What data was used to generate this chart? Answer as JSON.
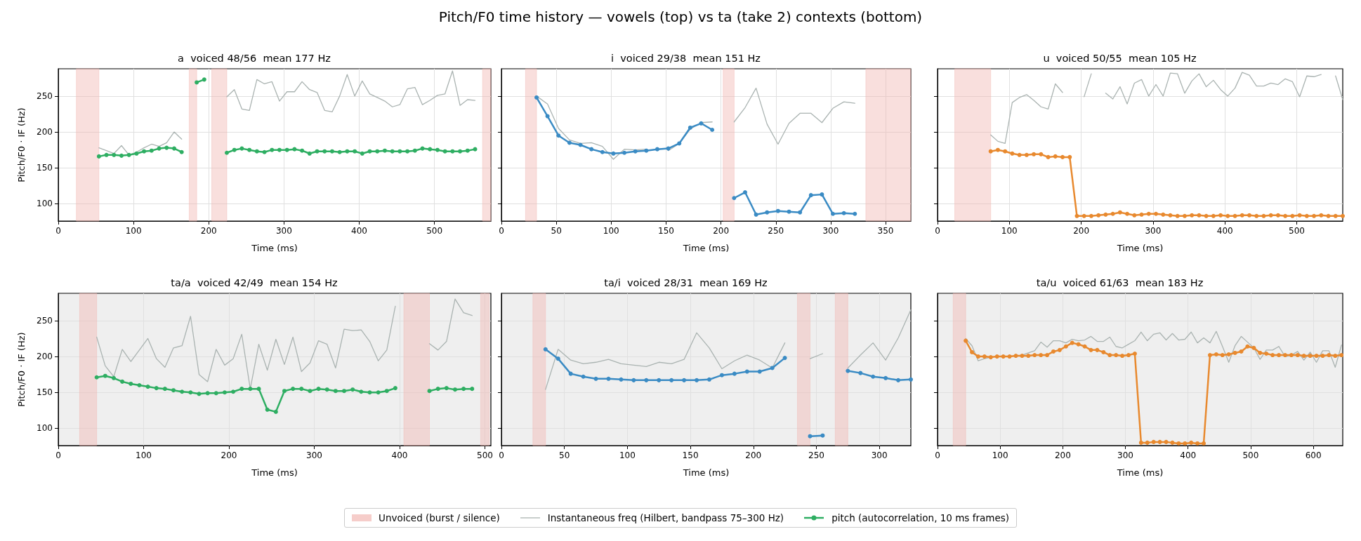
{
  "chart_data": [
    {
      "type": "line",
      "title": "a  voiced 48/56  mean 177 Hz",
      "xlabel": "Time (ms)",
      "ylabel": "Pitch/F0 · IF (Hz)",
      "annotations": [
        "Pitch/F0 time history — vowels (top) vs ta (take 2) contexts (bottom)"
      ],
      "legend": "bottom",
      "grid": true,
      "xlim": [
        0,
        575
      ],
      "xticks": [
        0,
        100,
        200,
        300,
        400,
        500
      ],
      "ylim": [
        76,
        288
      ],
      "yticks": [
        100,
        150,
        200,
        250
      ],
      "bands": [
        {
          "axis": "x",
          "from": 24,
          "to": 54,
          "label": "Unvoiced (burst / silence)",
          "color": "#f2b8b4"
        },
        {
          "axis": "x",
          "from": 174,
          "to": 184,
          "color": "#f2b8b4"
        },
        {
          "axis": "x",
          "from": 204,
          "to": 224,
          "color": "#f2b8b4"
        },
        {
          "axis": "x",
          "from": 564,
          "to": 575,
          "color": "#f2b8b4"
        }
      ],
      "series": [
        {
          "name": "Instantaneous freq (Hilbert, bandpass 75–300 Hz)",
          "color": "#aab3b1",
          "marker": "none",
          "x": [
            54,
            64,
            74,
            84,
            94,
            104,
            114,
            124,
            134,
            144,
            154,
            164,
            194,
            224,
            234,
            244,
            254,
            264,
            274,
            284,
            294,
            304,
            314,
            324,
            334,
            344,
            354,
            364,
            374,
            384,
            394,
            404,
            414,
            424,
            434,
            444,
            454,
            464,
            474,
            484,
            494,
            504,
            514,
            524,
            534,
            544,
            554
          ],
          "values": [
            178,
            174,
            170,
            181,
            168,
            172,
            178,
            183,
            180,
            185,
            200,
            190,
            null,
            249,
            259,
            232,
            230,
            273,
            267,
            270,
            243,
            256,
            256,
            270,
            259,
            255,
            230,
            228,
            250,
            280,
            250,
            271,
            253,
            248,
            243,
            235,
            238,
            260,
            262,
            238,
            244,
            251,
            253,
            285,
            237,
            245,
            244
          ]
        },
        {
          "name": "pitch (autocorrelation, 10 ms frames)",
          "color": "#2eae62",
          "marker": "circle",
          "x": [
            54,
            64,
            74,
            84,
            94,
            104,
            114,
            124,
            134,
            144,
            154,
            164,
            174,
            184,
            194,
            204,
            224,
            234,
            244,
            254,
            264,
            274,
            284,
            294,
            304,
            314,
            324,
            334,
            344,
            354,
            364,
            374,
            384,
            394,
            404,
            414,
            424,
            434,
            444,
            454,
            464,
            474,
            484,
            494,
            504,
            514,
            524,
            534,
            544,
            554
          ],
          "values": [
            166,
            168,
            168,
            167,
            168,
            170,
            173,
            174,
            177,
            178,
            177,
            172,
            null,
            269,
            273,
            null,
            171,
            175,
            177,
            175,
            173,
            172,
            175,
            175,
            175,
            176,
            174,
            170,
            173,
            173,
            173,
            172,
            173,
            173,
            170,
            173,
            173,
            174,
            173,
            173,
            173,
            174,
            177,
            176,
            175,
            173,
            173,
            173,
            174,
            176
          ]
        }
      ]
    },
    {
      "type": "line",
      "title": "i  voiced 29/38  mean 151 Hz",
      "xlabel": "Time (ms)",
      "grid": true,
      "tick_labels": "x",
      "xlim": [
        0,
        373
      ],
      "xticks": [
        0,
        50,
        100,
        150,
        200,
        250,
        300,
        350
      ],
      "ylim": [
        76,
        288
      ],
      "yticks": [
        100,
        150,
        200,
        250
      ],
      "bands": [
        {
          "axis": "x",
          "from": 22,
          "to": 32,
          "color": "#f2b8b4"
        },
        {
          "axis": "x",
          "from": 202,
          "to": 212,
          "color": "#f2b8b4"
        },
        {
          "axis": "x",
          "from": 332,
          "to": 373,
          "color": "#f2b8b4"
        }
      ],
      "series": [
        {
          "color": "#aab3b1",
          "marker": "none",
          "x": [
            32,
            42,
            52,
            62,
            72,
            82,
            92,
            102,
            112,
            122,
            132,
            142,
            152,
            162,
            172,
            182,
            192,
            202,
            212,
            222,
            232,
            242,
            252,
            262,
            272,
            282,
            292,
            302,
            312,
            322
          ],
          "values": [
            250,
            239,
            205,
            189,
            184,
            185,
            180,
            162,
            176,
            175,
            176,
            null,
            174,
            184,
            204,
            213,
            214,
            null,
            214,
            234,
            261,
            211,
            183,
            212,
            226,
            226,
            213,
            233,
            242,
            240
          ]
        },
        {
          "color": "#3a8bc4",
          "marker": "circle",
          "x": [
            32,
            42,
            52,
            62,
            72,
            82,
            92,
            102,
            112,
            122,
            132,
            142,
            152,
            162,
            172,
            182,
            192,
            202,
            212,
            222,
            232,
            242,
            252,
            262,
            272,
            282,
            292,
            302,
            312,
            322
          ],
          "values": [
            248,
            222,
            195,
            185,
            182,
            176,
            172,
            170,
            171,
            173,
            174,
            176,
            177,
            184,
            206,
            212,
            203,
            null,
            108,
            116,
            85,
            88,
            90,
            89,
            88,
            112,
            113,
            86,
            87,
            86
          ]
        }
      ]
    },
    {
      "type": "line",
      "title": "u  voiced 50/55  mean 105 Hz",
      "xlabel": "Time (ms)",
      "grid": true,
      "tick_labels": "x",
      "xlim": [
        0,
        564
      ],
      "xticks": [
        0,
        100,
        200,
        300,
        400,
        500
      ],
      "ylim": [
        76,
        288
      ],
      "yticks": [
        100,
        150,
        200,
        250
      ],
      "bands": [
        {
          "axis": "x",
          "from": 24,
          "to": 74,
          "color": "#f2b8b4"
        }
      ],
      "series": [
        {
          "color": "#aab3b1",
          "marker": "none",
          "x": [
            74,
            84,
            94,
            104,
            114,
            124,
            134,
            144,
            154,
            164,
            174,
            184,
            194,
            204,
            214,
            224,
            234,
            244,
            254,
            264,
            274,
            284,
            294,
            304,
            314,
            324,
            334,
            344,
            354,
            364,
            374,
            384,
            394,
            404,
            414,
            424,
            434,
            444,
            454,
            464,
            474,
            484,
            494,
            504,
            514,
            524,
            534,
            544,
            554,
            564
          ],
          "values": [
            196,
            187,
            184,
            241,
            248,
            252,
            244,
            235,
            232,
            267,
            255,
            null,
            null,
            249,
            281,
            null,
            254,
            246,
            263,
            239,
            268,
            273,
            250,
            266,
            250,
            282,
            281,
            254,
            271,
            281,
            263,
            272,
            259,
            250,
            261,
            283,
            279,
            264,
            264,
            268,
            266,
            274,
            270,
            249,
            278,
            277,
            280,
            null,
            278,
            245
          ]
        },
        {
          "color": "#e8892e",
          "marker": "circle",
          "x": [
            74,
            84,
            94,
            104,
            114,
            124,
            134,
            144,
            154,
            164,
            174,
            184,
            194,
            204,
            214,
            224,
            234,
            244,
            254,
            264,
            274,
            284,
            294,
            304,
            314,
            324,
            334,
            344,
            354,
            364,
            374,
            384,
            394,
            404,
            414,
            424,
            434,
            444,
            454,
            464,
            474,
            484,
            494,
            504,
            514,
            524,
            534,
            544,
            554,
            564
          ],
          "values": [
            173,
            175,
            173,
            170,
            168,
            168,
            169,
            169,
            165,
            166,
            165,
            165,
            83,
            83,
            83,
            84,
            85,
            86,
            88,
            86,
            84,
            85,
            86,
            86,
            85,
            84,
            83,
            83,
            84,
            84,
            83,
            83,
            84,
            83,
            83,
            84,
            84,
            83,
            83,
            84,
            84,
            83,
            83,
            84,
            83,
            83,
            84,
            83,
            83,
            83
          ]
        }
      ]
    },
    {
      "type": "line",
      "title": "ta/a  voiced 42/49  mean 154 Hz",
      "xlabel": "Time (ms)",
      "ylabel": "Pitch/F0 · IF (Hz)",
      "grid": true,
      "xlim": [
        0,
        507
      ],
      "xticks": [
        0,
        100,
        200,
        300,
        400,
        500
      ],
      "ylim": [
        76,
        288
      ],
      "yticks": [
        100,
        150,
        200,
        250
      ],
      "bands": [
        {
          "axis": "x",
          "from": 25,
          "to": 45,
          "color": "#f2b8b4"
        },
        {
          "axis": "x",
          "from": 405,
          "to": 435,
          "color": "#f2b8b4"
        },
        {
          "axis": "x",
          "from": 495,
          "to": 505,
          "color": "#f2b8b4"
        }
      ],
      "series": [
        {
          "color": "#aab3b1",
          "marker": "none",
          "x": [
            45,
            55,
            65,
            75,
            85,
            95,
            105,
            115,
            125,
            135,
            145,
            155,
            165,
            175,
            185,
            195,
            205,
            215,
            225,
            235,
            245,
            255,
            265,
            275,
            285,
            295,
            305,
            315,
            325,
            335,
            345,
            355,
            365,
            375,
            385,
            395,
            415,
            435,
            445,
            455,
            465,
            475,
            485
          ],
          "values": [
            227,
            187,
            172,
            210,
            193,
            209,
            225,
            197,
            185,
            212,
            215,
            256,
            175,
            165,
            210,
            188,
            197,
            231,
            155,
            217,
            181,
            224,
            189,
            227,
            179,
            191,
            222,
            217,
            184,
            238,
            236,
            237,
            221,
            194,
            209,
            270,
            null,
            218,
            209,
            221,
            280,
            261,
            257
          ]
        },
        {
          "color": "#2eae62",
          "marker": "circle",
          "x": [
            45,
            55,
            65,
            75,
            85,
            95,
            105,
            115,
            125,
            135,
            145,
            155,
            165,
            175,
            185,
            195,
            205,
            215,
            225,
            235,
            245,
            255,
            265,
            275,
            285,
            295,
            305,
            315,
            325,
            335,
            345,
            355,
            365,
            375,
            385,
            395,
            415,
            435,
            445,
            455,
            465,
            475,
            485
          ],
          "values": [
            171,
            173,
            170,
            165,
            162,
            160,
            158,
            156,
            155,
            153,
            151,
            150,
            148,
            149,
            149,
            150,
            151,
            155,
            155,
            155,
            126,
            123,
            152,
            155,
            155,
            152,
            155,
            154,
            152,
            152,
            154,
            151,
            150,
            150,
            152,
            156,
            null,
            152,
            155,
            156,
            154,
            155,
            155
          ]
        }
      ]
    },
    {
      "type": "line",
      "title": "ta/i  voiced 28/31  mean 169 Hz",
      "xlabel": "Time (ms)",
      "grid": true,
      "tick_labels": "x",
      "xlim": [
        0,
        325
      ],
      "xticks": [
        0,
        50,
        100,
        150,
        200,
        250,
        300
      ],
      "ylim": [
        76,
        288
      ],
      "yticks": [
        100,
        150,
        200,
        250
      ],
      "bands": [
        {
          "axis": "x",
          "from": 25,
          "to": 35,
          "color": "#f2b8b4"
        },
        {
          "axis": "x",
          "from": 235,
          "to": 245,
          "color": "#f2b8b4"
        },
        {
          "axis": "x",
          "from": 265,
          "to": 275,
          "color": "#f2b8b4"
        }
      ],
      "series": [
        {
          "color": "#aab3b1",
          "marker": "none",
          "x": [
            35,
            45,
            55,
            65,
            75,
            85,
            95,
            105,
            115,
            125,
            135,
            145,
            155,
            165,
            175,
            185,
            195,
            205,
            215,
            225,
            235,
            245,
            255,
            265,
            275,
            285,
            295,
            305,
            315,
            325
          ],
          "values": [
            154,
            210,
            195,
            190,
            192,
            196,
            190,
            188,
            186,
            192,
            190,
            196,
            233,
            212,
            183,
            194,
            202,
            195,
            184,
            219,
            null,
            197,
            204,
            null,
            184,
            202,
            219,
            195,
            226,
            265
          ]
        },
        {
          "color": "#3a8bc4",
          "marker": "circle",
          "x": [
            35,
            45,
            55,
            65,
            75,
            85,
            95,
            105,
            115,
            125,
            135,
            145,
            155,
            165,
            175,
            185,
            195,
            205,
            215,
            225,
            235,
            245,
            255,
            265,
            275,
            285,
            295,
            305,
            315,
            325
          ],
          "values": [
            210,
            197,
            176,
            172,
            169,
            169,
            168,
            167,
            167,
            167,
            167,
            167,
            167,
            168,
            174,
            176,
            179,
            179,
            184,
            198,
            null,
            89,
            90,
            null,
            180,
            177,
            172,
            170,
            167,
            168
          ]
        }
      ]
    },
    {
      "type": "line",
      "title": "ta/u  voiced 61/63  mean 183 Hz",
      "xlabel": "Time (ms)",
      "grid": true,
      "tick_labels": "x",
      "xlim": [
        0,
        647
      ],
      "xticks": [
        0,
        100,
        200,
        300,
        400,
        500,
        600
      ],
      "ylim": [
        76,
        288
      ],
      "yticks": [
        100,
        150,
        200,
        250
      ],
      "bands": [
        {
          "axis": "x",
          "from": 25,
          "to": 45,
          "color": "#f2b8b4"
        }
      ],
      "series": [
        {
          "color": "#aab3b1",
          "marker": "none",
          "x": [
            45,
            55,
            65,
            75,
            85,
            95,
            105,
            115,
            125,
            135,
            145,
            155,
            165,
            175,
            185,
            195,
            205,
            215,
            225,
            235,
            245,
            255,
            265,
            275,
            285,
            295,
            305,
            315,
            325,
            335,
            345,
            355,
            365,
            375,
            385,
            395,
            405,
            415,
            425,
            435,
            445,
            455,
            465,
            475,
            485,
            495,
            505,
            515,
            525,
            535,
            545,
            555,
            565,
            575,
            585,
            595,
            605,
            615,
            625,
            635,
            645
          ],
          "values": [
            225,
            215,
            194,
            197,
            199,
            null,
            null,
            null,
            null,
            202,
            205,
            208,
            220,
            213,
            222,
            222,
            219,
            224,
            222,
            223,
            228,
            221,
            221,
            227,
            214,
            212,
            217,
            222,
            234,
            222,
            231,
            233,
            223,
            232,
            223,
            224,
            234,
            219,
            226,
            219,
            235,
            214,
            192,
            215,
            228,
            220,
            212,
            196,
            209,
            209,
            214,
            200,
            202,
            207,
            195,
            206,
            192,
            208,
            208,
            185,
            216
          ]
        },
        {
          "color": "#e8892e",
          "marker": "circle",
          "x": [
            45,
            55,
            65,
            75,
            85,
            95,
            105,
            115,
            125,
            135,
            145,
            155,
            165,
            175,
            185,
            195,
            205,
            215,
            225,
            235,
            245,
            255,
            265,
            275,
            285,
            295,
            305,
            315,
            325,
            335,
            345,
            355,
            365,
            375,
            385,
            395,
            405,
            415,
            425,
            435,
            445,
            455,
            465,
            475,
            485,
            495,
            505,
            515,
            525,
            535,
            545,
            555,
            565,
            575,
            585,
            595,
            605,
            615,
            625,
            635,
            645
          ],
          "values": [
            222,
            206,
            200,
            200,
            199,
            200,
            200,
            200,
            201,
            201,
            201,
            202,
            202,
            202,
            207,
            209,
            214,
            219,
            217,
            214,
            209,
            209,
            206,
            202,
            202,
            201,
            202,
            204,
            80,
            80,
            81,
            81,
            81,
            80,
            79,
            79,
            80,
            79,
            79,
            202,
            203,
            202,
            203,
            205,
            207,
            214,
            212,
            205,
            204,
            202,
            202,
            202,
            202,
            202,
            201,
            201,
            201,
            201,
            202,
            201,
            202
          ]
        }
      ]
    }
  ]
}
